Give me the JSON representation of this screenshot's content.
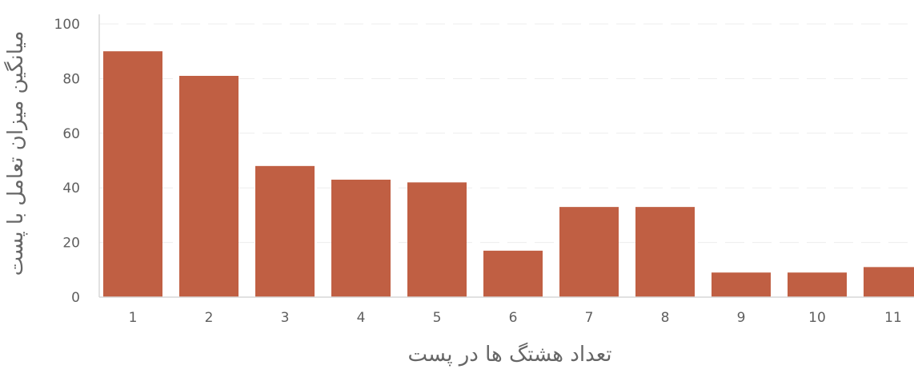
{
  "colors": {
    "bar": "#c05f43",
    "grid": "#ededed",
    "axis": "#d7d7d7",
    "text": "#5f5f5f"
  },
  "chart_data": {
    "type": "bar",
    "categories": [
      "1",
      "2",
      "3",
      "4",
      "5",
      "6",
      "7",
      "8",
      "9",
      "10",
      "11"
    ],
    "values": [
      90,
      81,
      48,
      43,
      42,
      17,
      33,
      33,
      9,
      9,
      11
    ],
    "title": "",
    "xlabel": "تعداد هشتگ ها در پست",
    "ylabel": "میانگین میزان تعامل با پست",
    "ylim": [
      0,
      100
    ],
    "yticks": [
      0,
      20,
      40,
      60,
      80,
      100
    ],
    "grid": true
  }
}
